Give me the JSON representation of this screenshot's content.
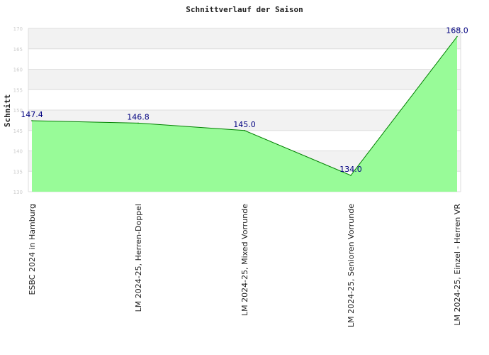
{
  "chart_data": {
    "type": "area",
    "title": "Schnittverlauf der Saison",
    "xlabel": "",
    "ylabel": "Schnitt",
    "categories": [
      "ESBC 2024 in Hamburg",
      "LM 2024-25, Herren-Doppel",
      "LM 2024-25, Mixed Vorrunde",
      "LM 2024-25, Senioren Vorrunde",
      "LM 2024-25, Einzel - Herren VR"
    ],
    "values": [
      147.4,
      146.8,
      145.0,
      134.0,
      168.0
    ],
    "data_labels": [
      "147.4",
      "146.8",
      "145.0",
      "134.0",
      "168.0"
    ],
    "ylim": [
      130,
      170
    ],
    "yticks": [
      130,
      135,
      140,
      145,
      150,
      155,
      160,
      165,
      170
    ],
    "grid": true,
    "legend": "none",
    "colors": {
      "fill": "#98fb98",
      "line": "#008000",
      "band": "#f2f2f2",
      "grid": "#dddddd",
      "data_label": "#000080",
      "tick_label": "#cccccc"
    }
  }
}
